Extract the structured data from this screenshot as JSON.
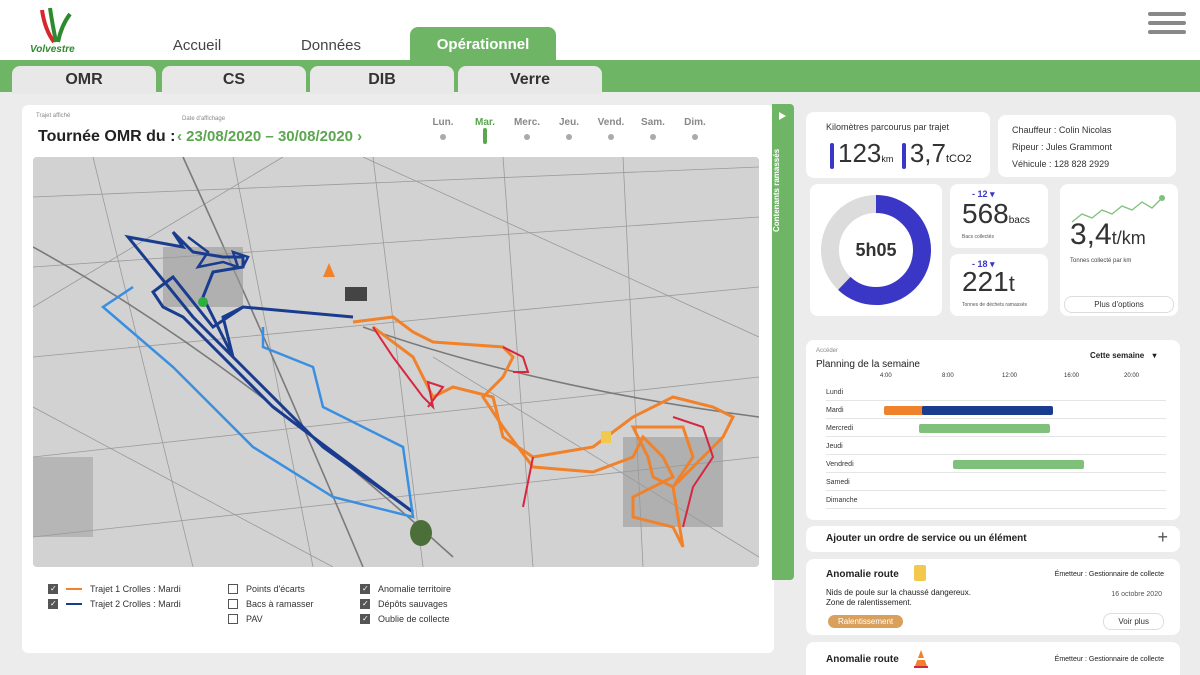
{
  "brand": {
    "name": "Volvestre"
  },
  "nav": {
    "tabs": [
      {
        "label": "Accueil"
      },
      {
        "label": "Données"
      },
      {
        "label": "Opérationnel"
      }
    ],
    "active_tab": "Opérationnel",
    "sub_tabs": [
      {
        "label": "OMR"
      },
      {
        "label": "CS"
      },
      {
        "label": "DIB"
      },
      {
        "label": "Verre"
      }
    ],
    "active_sub_tab": "OMR"
  },
  "tour": {
    "route_label": "Trajet affiché",
    "date_label": "Date d'affichage",
    "title": "Tournée OMR du :",
    "date_start": "23/08/2020",
    "date_sep": "–",
    "date_end": "30/08/2020",
    "prev_icon": "chevron-left-icon",
    "next_icon": "chevron-right-icon",
    "days": [
      "Lun.",
      "Mar.",
      "Merc.",
      "Jeu.",
      "Vend.",
      "Sam.",
      "Dim."
    ],
    "active_day": "Mar."
  },
  "legend": {
    "col1": [
      {
        "label": "Trajet 1 Crolles : Mardi",
        "checked": true,
        "color": "#f0822c"
      },
      {
        "label": "Trajet 2 Crolles : Mardi",
        "checked": true,
        "color": "#1a3c8f"
      }
    ],
    "col2": [
      {
        "label": "Points d'écarts",
        "checked": false
      },
      {
        "label": "Bacs à ramasser",
        "checked": false
      },
      {
        "label": "PAV",
        "checked": false
      }
    ],
    "col3": [
      {
        "label": "Anomalie territoire",
        "checked": true
      },
      {
        "label": "Dépôts sauvages",
        "checked": true
      },
      {
        "label": "Oublie de collecte",
        "checked": true
      }
    ]
  },
  "side_tab": {
    "label": "Contenants ramassés"
  },
  "km_card": {
    "title": "Kilomètres parcourus par trajet",
    "km_value": "123",
    "km_unit": "km",
    "co2_value": "3,7",
    "co2_unit": "tCO2"
  },
  "driver_card": {
    "chauffeur": "Chauffeur : Colin Nicolas",
    "ripeur": "Ripeur : Jules Grammont",
    "vehicule": "Véhicule : 128 828 2929"
  },
  "duration": {
    "value": "5h05",
    "progress": 0.62,
    "color": "#3a37c6"
  },
  "bins": {
    "delta": "- 12",
    "value": "568",
    "unit": "bacs",
    "label": "Bacs collectés"
  },
  "tons": {
    "delta": "- 18",
    "value": "221",
    "unit": "t",
    "label": "Tonnes de déchets ramassés"
  },
  "tons_per_km": {
    "value": "3,4",
    "unit": "t/km",
    "label": "Tonnes collecté par km",
    "button": "Plus d'options"
  },
  "planning": {
    "access_label": "Accéder",
    "title": "Planning de la semaine",
    "period": "Cette semaine",
    "ticks": [
      "4:00",
      "8:00",
      "12:00",
      "16:00",
      "20:00"
    ],
    "days": [
      "Lundi",
      "Mardi",
      "Mercredi",
      "Jeudi",
      "Vendredi",
      "Samedi",
      "Dimanche"
    ],
    "bars": [
      {
        "day": "Mardi",
        "start": 4.0,
        "end": 12.4,
        "color": "#f0822c"
      },
      {
        "day": "Mardi",
        "start": 6.5,
        "end": 15.0,
        "color": "#1a3c8f"
      },
      {
        "day": "Mercredi",
        "start": 6.3,
        "end": 14.8,
        "color": "#7fc07a"
      },
      {
        "day": "Vendredi",
        "start": 8.5,
        "end": 17.0,
        "color": "#7fc07a"
      }
    ]
  },
  "add_order": {
    "label": "Ajouter un ordre de service ou un élément"
  },
  "anomalies": [
    {
      "title": "Anomalie route",
      "emitter": "Émetteur : Gestionnaire de collecte",
      "line1": "Nids de poule sur la chaussé dangereux.",
      "line2": "Zone de ralentissement.",
      "date": "16 octobre 2020",
      "badge": "Ralentissement",
      "button": "Voir plus",
      "icon": "warning-sign-icon"
    },
    {
      "title": "Anomalie route",
      "emitter": "Émetteur : Gestionnaire de collecte",
      "icon": "traffic-cone-icon"
    }
  ]
}
